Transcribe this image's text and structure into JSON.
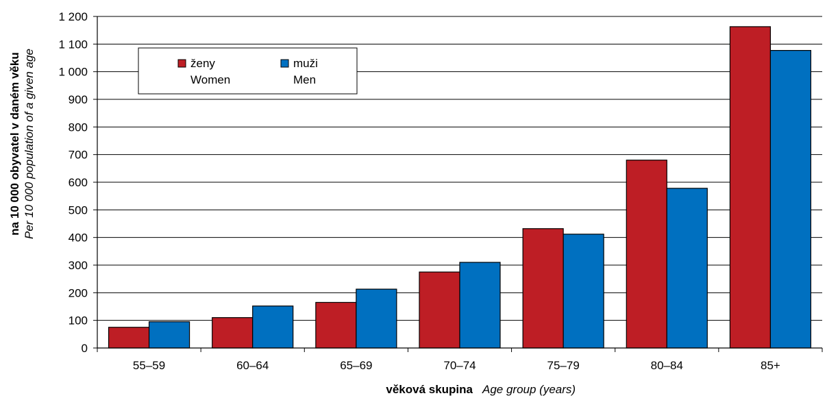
{
  "chart_data": {
    "type": "bar",
    "categories": [
      "55–59",
      "60–64",
      "65–69",
      "70–74",
      "75–79",
      "80–84",
      "85+"
    ],
    "series": [
      {
        "name": "ženy",
        "name_en": "Women",
        "color": "#be1e25",
        "values": [
          75,
          110,
          165,
          275,
          432,
          680,
          1163
        ]
      },
      {
        "name": "muži",
        "name_en": "Men",
        "color": "#0070c0",
        "values": [
          95,
          152,
          213,
          310,
          412,
          578,
          1077
        ]
      }
    ],
    "ylim": [
      0,
      1200
    ],
    "yticks": [
      0,
      100,
      200,
      300,
      400,
      500,
      600,
      700,
      800,
      900,
      1000,
      1100,
      1200
    ],
    "ytick_labels": [
      "0",
      "100",
      "200",
      "300",
      "400",
      "500",
      "600",
      "700",
      "800",
      "900",
      "1 000",
      "1 100",
      "1 200"
    ],
    "xlabel": {
      "bold": "věková skupina",
      "italic": "Age group (years)"
    },
    "ylabel": {
      "bold": "na 10 000 obyvatel v daném věku",
      "italic": "Per 10 000 population of a given age"
    },
    "grid": true,
    "legend_position": "top-left"
  }
}
